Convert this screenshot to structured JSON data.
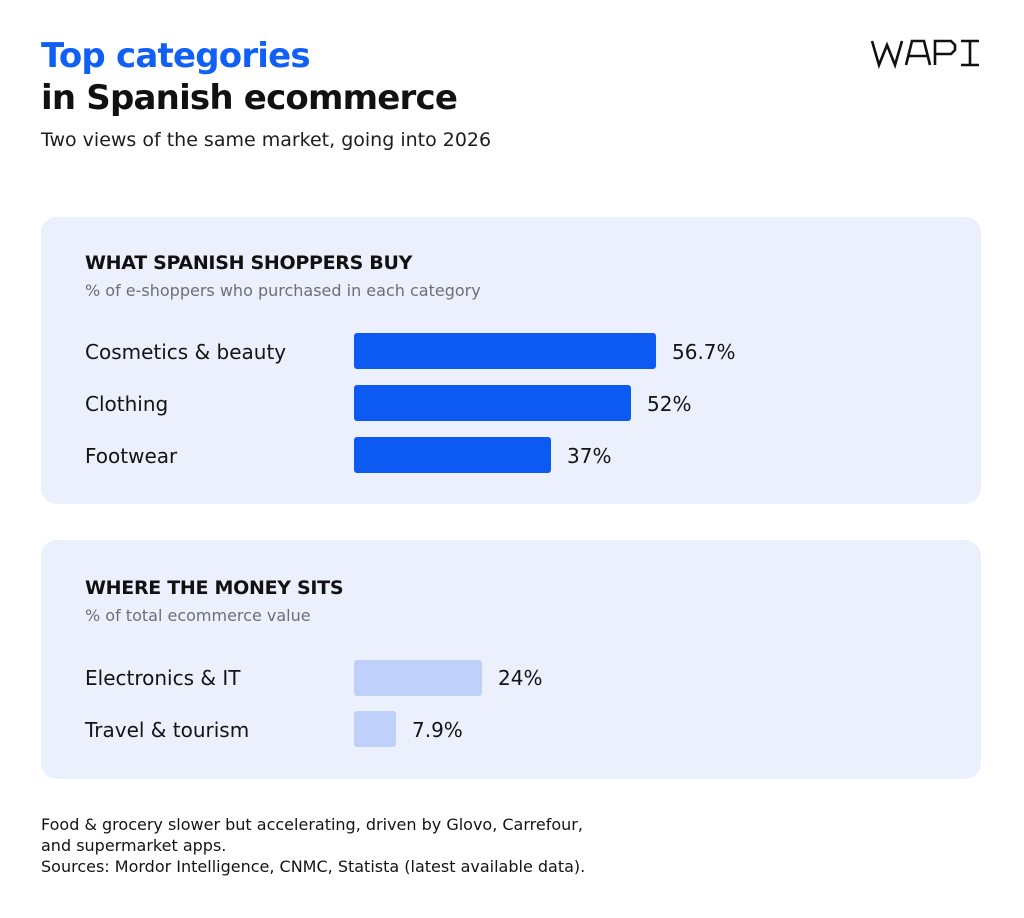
{
  "header": {
    "title_line1": "Top categories",
    "title_line2": "in Spanish ecommerce",
    "subtitle": "Two views of the same market, going into 2026",
    "logo": "WAPI"
  },
  "colors": {
    "accent": "#1160f5",
    "bar_primary": "#0d5af2",
    "bar_secondary": "#bfd1fb",
    "panel_bg": "#ebf0fc"
  },
  "chart_data": [
    {
      "type": "bar",
      "orientation": "horizontal",
      "title": "WHAT SPANISH SHOPPERS BUY",
      "subtitle": "% of e-shoppers who purchased in each category",
      "categories": [
        "Cosmetics & beauty",
        "Clothing",
        "Footwear"
      ],
      "values": [
        56.7,
        52,
        37
      ],
      "value_labels": [
        "56.7%",
        "52%",
        "37%"
      ],
      "unit": "%",
      "color": "#0d5af2"
    },
    {
      "type": "bar",
      "orientation": "horizontal",
      "title": "WHERE THE MONEY SITS",
      "subtitle": "% of total ecommerce value",
      "categories": [
        "Electronics & IT",
        "Travel & tourism"
      ],
      "values": [
        24,
        7.9
      ],
      "value_labels": [
        "24%",
        "7.9%"
      ],
      "unit": "%",
      "color": "#bfd1fb"
    }
  ],
  "footer": {
    "note_line1": "Food & grocery slower but accelerating, driven by Glovo, Carrefour,",
    "note_line2": "and supermarket apps.",
    "sources": "Sources: Mordor Intelligence, CNMC, Statista (latest available data)."
  }
}
